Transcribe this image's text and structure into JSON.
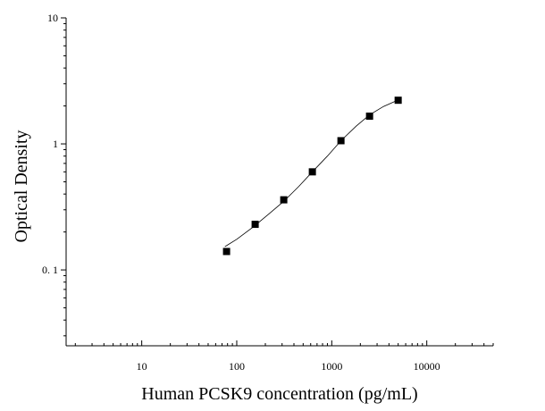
{
  "chart_data": {
    "type": "scatter",
    "title": "",
    "xlabel": "Human PCSK9 concentration (pg/mL)",
    "ylabel": "Optical Density",
    "x_scale": "log",
    "y_scale": "log",
    "xlim": [
      1.6,
      50000
    ],
    "ylim": [
      0.025,
      10
    ],
    "x_ticks": [
      {
        "value": 10,
        "label": "10"
      },
      {
        "value": 100,
        "label": "100"
      },
      {
        "value": 1000,
        "label": "1000"
      },
      {
        "value": 10000,
        "label": "10000"
      }
    ],
    "y_ticks": [
      {
        "value": 0.1,
        "label": "0. 1"
      },
      {
        "value": 1,
        "label": "1"
      },
      {
        "value": 10,
        "label": "10"
      }
    ],
    "grid": false,
    "series": [
      {
        "x": [
          78.13,
          156.25,
          312.5,
          625,
          1250,
          2500,
          5000
        ],
        "y": [
          0.14,
          0.23,
          0.36,
          0.6,
          1.06,
          1.66,
          2.22
        ]
      }
    ],
    "fit_curve": {
      "x": [
        75,
        100,
        150,
        220,
        312.5,
        450,
        625,
        900,
        1250,
        1800,
        2500,
        3500,
        5000
      ],
      "y": [
        0.153,
        0.175,
        0.22,
        0.28,
        0.35,
        0.46,
        0.6,
        0.8,
        1.06,
        1.38,
        1.7,
        1.98,
        2.23
      ]
    }
  }
}
